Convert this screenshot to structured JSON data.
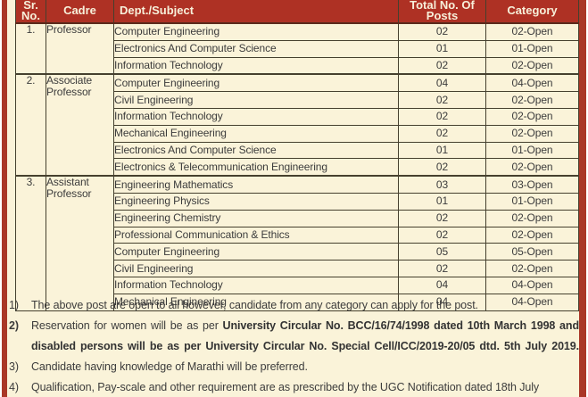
{
  "colors": {
    "accent_red": "#A93727",
    "header_bg": "#AE3124",
    "paper": "#FAF3D9",
    "cell_border": "#45402E",
    "body_text": "#3C3C3C",
    "header_text": "#F7F0DA"
  },
  "table": {
    "headers": [
      {
        "label": "Sr.\nNo.",
        "name": "col-sr-no"
      },
      {
        "label": "Cadre",
        "name": "col-cadre"
      },
      {
        "label": "Dept./Subject",
        "name": "col-dept-subject"
      },
      {
        "label": "Total No. Of\nPosts",
        "name": "col-total-posts"
      },
      {
        "label": "Category",
        "name": "col-category"
      }
    ],
    "groups": [
      {
        "sr": "1.",
        "cadre": "Professor",
        "rows": [
          {
            "dept": "Computer Engineering",
            "posts": "02",
            "category": "02-Open"
          },
          {
            "dept": "Electronics And Computer Science",
            "posts": "01",
            "category": "01-Open"
          },
          {
            "dept": "Information Technology",
            "posts": "02",
            "category": "02-Open"
          }
        ]
      },
      {
        "sr": "2.",
        "cadre": "Associate Professor",
        "rows": [
          {
            "dept": "Computer Engineering",
            "posts": "04",
            "category": "04-Open"
          },
          {
            "dept": "Civil Engineering",
            "posts": "02",
            "category": "02-Open"
          },
          {
            "dept": "Information Technology",
            "posts": "02",
            "category": "02-Open"
          },
          {
            "dept": "Mechanical Engineering",
            "posts": "02",
            "category": "02-Open"
          },
          {
            "dept": "Electronics And Computer Science",
            "posts": "01",
            "category": "01-Open"
          },
          {
            "dept": "Electronics & Telecommunication Engineering",
            "posts": "02",
            "category": "02-Open"
          }
        ]
      },
      {
        "sr": "3.",
        "cadre": "Assistant Professor",
        "rows": [
          {
            "dept": "Engineering Mathematics",
            "posts": "03",
            "category": "03-Open"
          },
          {
            "dept": "Engineering Physics",
            "posts": "01",
            "category": "01-Open"
          },
          {
            "dept": "Engineering Chemistry",
            "posts": "02",
            "category": "02-Open"
          },
          {
            "dept": "Professional Communication & Ethics",
            "posts": "02",
            "category": "02-Open"
          },
          {
            "dept": "Computer Engineering",
            "posts": "05",
            "category": "05-Open"
          },
          {
            "dept": "Civil Engineering",
            "posts": "02",
            "category": "02-Open"
          },
          {
            "dept": "Information Technology",
            "posts": "04",
            "category": "04-Open"
          },
          {
            "dept": "Mechanical Engineering",
            "posts": "04",
            "category": "04-Open"
          }
        ]
      }
    ]
  },
  "notes": [
    {
      "num": "1)",
      "text": "The above post are open to all however, candidate from any category can apply for the post."
    },
    {
      "num": "2)",
      "num_bold": true,
      "text": "Reservation for women will be as per ",
      "bold": "University Circular No. BCC/16/74/1998 dated 10th March 1998 and disabled persons will be as per University Circular No. Special Cell/ICC/2019-20/05 dtd. 5th July 2019.",
      "justify": true
    },
    {
      "num": "3)",
      "text": "Candidate having knowledge of Marathi will be preferred."
    },
    {
      "num": "4)",
      "text": "Qualification, Pay-scale and other requirement are as prescribed by the UGC Notification dated 18th July"
    }
  ]
}
